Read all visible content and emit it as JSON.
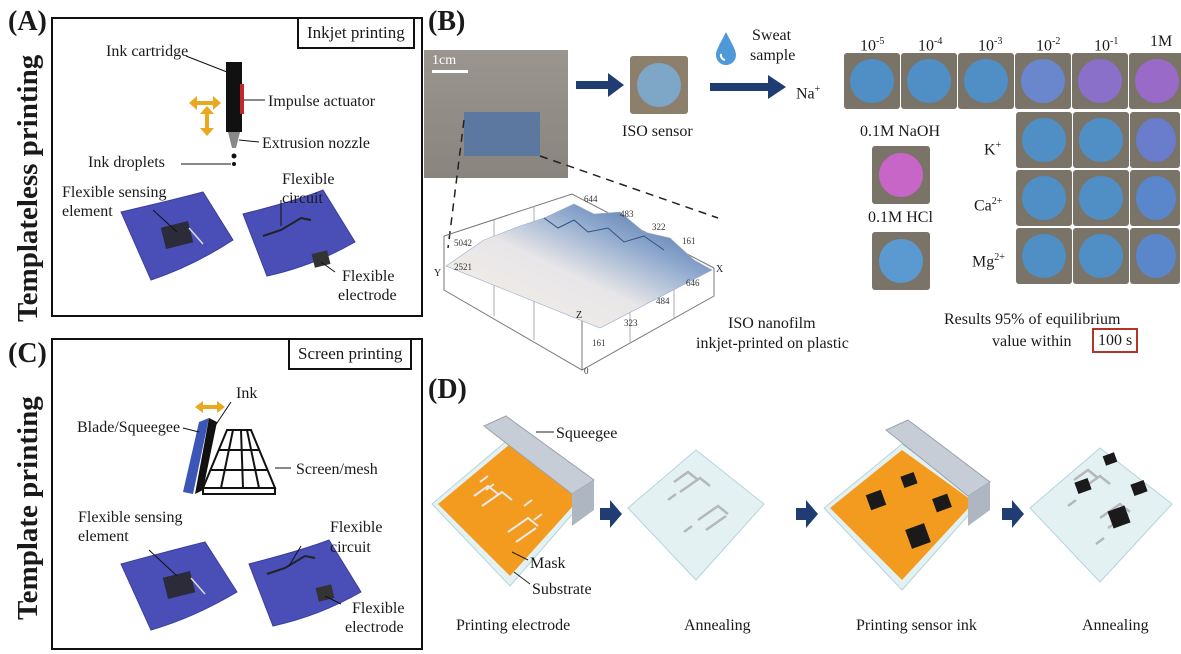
{
  "side_labels": {
    "templateless": "Templateless printing",
    "template": "Template printing"
  },
  "panel_a": {
    "letter": "(A)",
    "title": "Inkjet printing",
    "ink_cartridge": "Ink cartridge",
    "impulse_actuator": "Impulse actuator",
    "extrusion_nozzle": "Extrusion nozzle",
    "ink_droplets": "Ink droplets",
    "flexible_sensing_element": [
      "Flexible sensing",
      "element"
    ],
    "flexible_circuit": [
      "Flexible",
      "circuit"
    ],
    "flexible_electrode": [
      "Flexible",
      "electrode"
    ]
  },
  "panel_b": {
    "letter": "(B)",
    "scale_bar": "1cm",
    "iso_sensor": "ISO sensor",
    "sweat_sample": [
      "Sweat",
      "sample"
    ],
    "ion": "Na+",
    "concentrations": [
      "10-5",
      "10-4",
      "10-3",
      "10-2",
      "10-1",
      "1M"
    ],
    "naoh": "0.1M NaOH",
    "hcl": "0.1M HCl",
    "ions": [
      "K+",
      "Ca2+",
      "Mg2+"
    ],
    "plot_y_ticks": [
      "5042",
      "2521"
    ],
    "plot_top_ticks": [
      "644",
      "483",
      "322",
      "161"
    ],
    "plot_x_ticks": [
      "646",
      "484",
      "323",
      "161",
      "0"
    ],
    "axis_x": "X",
    "axis_y": "Y",
    "axis_z": "Z",
    "nanofilm_caption": [
      "ISO nanofilm",
      "inkjet-printed on plastic"
    ],
    "results_caption": [
      "Results 95% of equilibrium",
      "value within",
      "100 s"
    ]
  },
  "panel_c": {
    "letter": "(C)",
    "title": "Screen printing",
    "ink": "Ink",
    "blade": "Blade/Squeegee",
    "screen": "Screen/mesh",
    "flexible_sensing_element": [
      "Flexible sensing",
      "element"
    ],
    "flexible_circuit": [
      "Flexible",
      "circuit"
    ],
    "flexible_electrode": [
      "Flexible",
      "electrode"
    ]
  },
  "panel_d": {
    "letter": "(D)",
    "squeegee": "Squeegee",
    "mask": "Mask",
    "substrate": "Substrate",
    "steps": [
      "Printing electrode",
      "Annealing",
      "Printing sensor ink",
      "Annealing"
    ]
  },
  "colors": {
    "sheet": "#4a4fb8",
    "orange": "#f39b1e",
    "arrow_gold": "#e9a81e",
    "arrow_navy": "#1f3d73",
    "well_blue": "#4f8fc6",
    "well_purple": "#9a6ac8",
    "well_pink": "#c866c8",
    "red_box": "#b5342a"
  }
}
